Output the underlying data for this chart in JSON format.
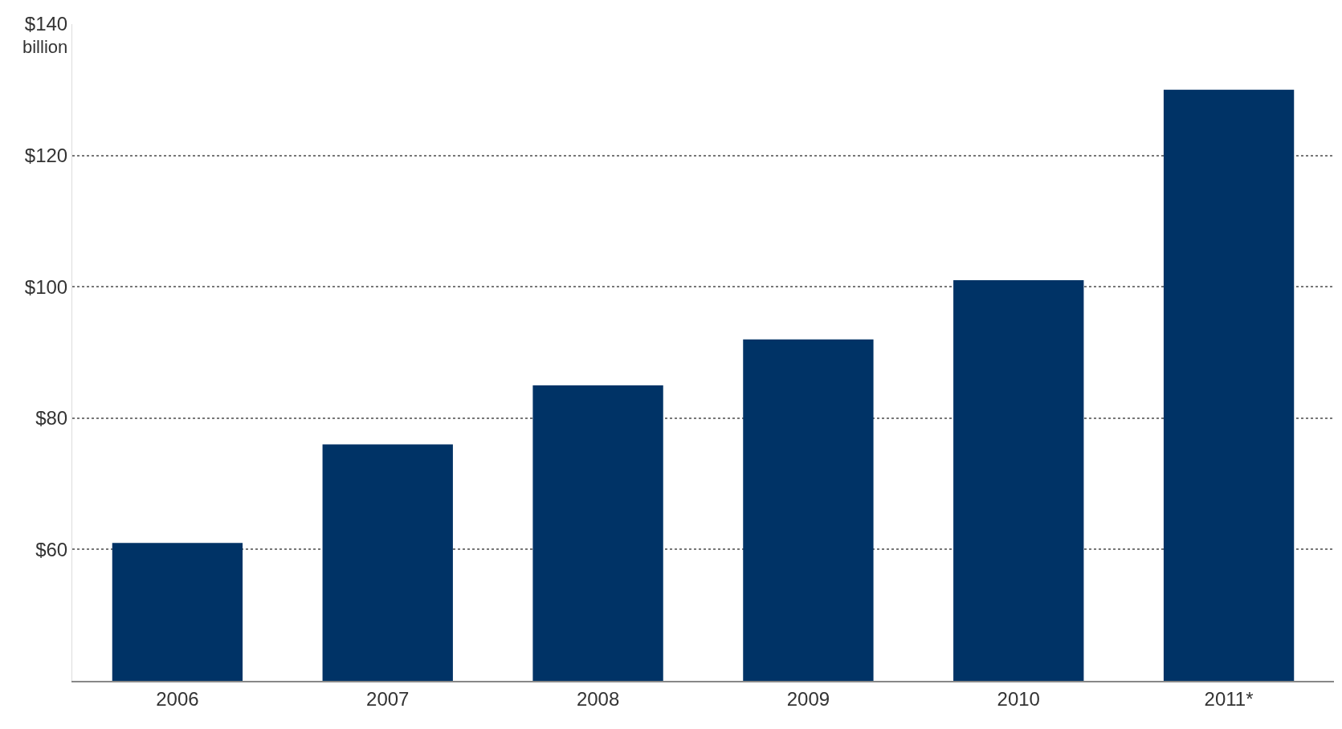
{
  "chart_data": {
    "type": "bar",
    "categories": [
      "2006",
      "2007",
      "2008",
      "2009",
      "2010",
      "2011*"
    ],
    "values": [
      61,
      76,
      85,
      92,
      101,
      130
    ],
    "color": "#003366",
    "ylim": [
      40,
      140
    ],
    "yticks": [
      {
        "value": 60,
        "label": "$60"
      },
      {
        "value": 80,
        "label": "$80"
      },
      {
        "value": 100,
        "label": "$100"
      },
      {
        "value": 120,
        "label": "$120"
      },
      {
        "value": 140,
        "label": "$140"
      }
    ],
    "ylabel": "billion",
    "grid": "y"
  }
}
